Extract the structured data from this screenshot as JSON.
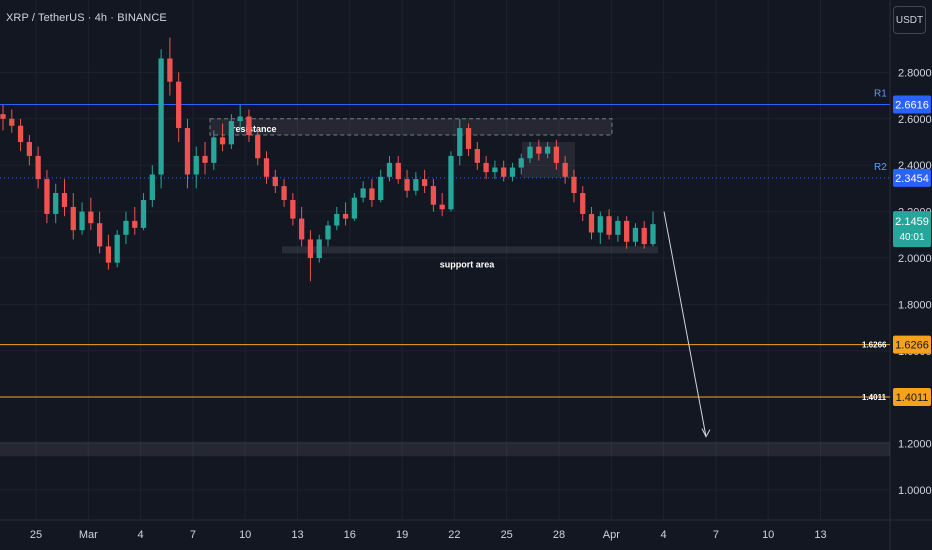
{
  "header": {
    "symbol_line": "XRP / TetherUS · 4h · BINANCE"
  },
  "unit_button": "USDT",
  "colors": {
    "background": "#131722",
    "grid": "#1e222d",
    "up": "#26a69a",
    "down": "#ef5350",
    "resistance_line": "#2962ff",
    "fib_line": "#f7a21b",
    "r2_badge": "#2962ff",
    "last_price_badge": "#26a69a"
  },
  "chart_data": {
    "type": "candlestick",
    "y_ticks": [
      "1.0000",
      "1.2000",
      "1.4000",
      "1.6000",
      "1.8000",
      "2.0000",
      "2.2000",
      "2.4000",
      "2.6000",
      "2.8000"
    ],
    "x_ticks": [
      "25",
      "Mar",
      "4",
      "7",
      "10",
      "13",
      "16",
      "19",
      "22",
      "25",
      "28",
      "Apr",
      "4",
      "7",
      "10",
      "13"
    ],
    "horizontal_lines": [
      {
        "label": "R1",
        "value": 2.6616,
        "badge": "2.6616",
        "style": "solid",
        "color": "#2962ff"
      },
      {
        "label": "R2",
        "value": 2.3454,
        "badge": "2.3454",
        "style": "dotted",
        "color": "#2962ff"
      },
      {
        "label": "1.6266",
        "value": 1.6266,
        "badge": "1.6266",
        "style": "solid",
        "color": "#f7a21b"
      },
      {
        "label": "1.4011",
        "value": 1.4011,
        "badge": "1.4011",
        "style": "solid",
        "color": "#f7a21b"
      }
    ],
    "last_price": {
      "value": "2.1459",
      "countdown": "40:01"
    },
    "zones": [
      {
        "label": "resistance",
        "low": 2.53,
        "high": 2.6
      },
      {
        "label": "support area",
        "low": 2.02,
        "high": 2.05
      },
      {
        "label": "",
        "low": 1.18,
        "high": 1.26
      }
    ],
    "projection_arrow": {
      "from_value": 2.2,
      "to_value": 1.23
    },
    "candles": [
      {
        "o": 2.62,
        "h": 2.66,
        "l": 2.55,
        "c": 2.6
      },
      {
        "o": 2.6,
        "h": 2.64,
        "l": 2.54,
        "c": 2.57
      },
      {
        "o": 2.57,
        "h": 2.6,
        "l": 2.46,
        "c": 2.5
      },
      {
        "o": 2.5,
        "h": 2.53,
        "l": 2.4,
        "c": 2.44
      },
      {
        "o": 2.44,
        "h": 2.48,
        "l": 2.3,
        "c": 2.34
      },
      {
        "o": 2.34,
        "h": 2.38,
        "l": 2.15,
        "c": 2.19
      },
      {
        "o": 2.19,
        "h": 2.32,
        "l": 2.15,
        "c": 2.28
      },
      {
        "o": 2.28,
        "h": 2.34,
        "l": 2.18,
        "c": 2.22
      },
      {
        "o": 2.22,
        "h": 2.28,
        "l": 2.08,
        "c": 2.12
      },
      {
        "o": 2.12,
        "h": 2.24,
        "l": 2.1,
        "c": 2.2
      },
      {
        "o": 2.2,
        "h": 2.26,
        "l": 2.12,
        "c": 2.15
      },
      {
        "o": 2.15,
        "h": 2.2,
        "l": 2.02,
        "c": 2.05
      },
      {
        "o": 2.05,
        "h": 2.1,
        "l": 1.95,
        "c": 1.98
      },
      {
        "o": 1.98,
        "h": 2.12,
        "l": 1.96,
        "c": 2.1
      },
      {
        "o": 2.1,
        "h": 2.2,
        "l": 2.06,
        "c": 2.16
      },
      {
        "o": 2.16,
        "h": 2.22,
        "l": 2.1,
        "c": 2.13
      },
      {
        "o": 2.13,
        "h": 2.28,
        "l": 2.12,
        "c": 2.25
      },
      {
        "o": 2.25,
        "h": 2.4,
        "l": 2.22,
        "c": 2.36
      },
      {
        "o": 2.36,
        "h": 2.9,
        "l": 2.3,
        "c": 2.86
      },
      {
        "o": 2.86,
        "h": 2.95,
        "l": 2.7,
        "c": 2.76
      },
      {
        "o": 2.76,
        "h": 2.8,
        "l": 2.5,
        "c": 2.56
      },
      {
        "o": 2.56,
        "h": 2.6,
        "l": 2.3,
        "c": 2.36
      },
      {
        "o": 2.36,
        "h": 2.48,
        "l": 2.3,
        "c": 2.44
      },
      {
        "o": 2.44,
        "h": 2.5,
        "l": 2.36,
        "c": 2.41
      },
      {
        "o": 2.41,
        "h": 2.55,
        "l": 2.38,
        "c": 2.52
      },
      {
        "o": 2.52,
        "h": 2.58,
        "l": 2.46,
        "c": 2.49
      },
      {
        "o": 2.49,
        "h": 2.62,
        "l": 2.47,
        "c": 2.59
      },
      {
        "o": 2.59,
        "h": 2.66,
        "l": 2.55,
        "c": 2.61
      },
      {
        "o": 2.61,
        "h": 2.64,
        "l": 2.5,
        "c": 2.53
      },
      {
        "o": 2.53,
        "h": 2.56,
        "l": 2.4,
        "c": 2.43
      },
      {
        "o": 2.43,
        "h": 2.46,
        "l": 2.32,
        "c": 2.35
      },
      {
        "o": 2.35,
        "h": 2.38,
        "l": 2.28,
        "c": 2.31
      },
      {
        "o": 2.31,
        "h": 2.34,
        "l": 2.22,
        "c": 2.25
      },
      {
        "o": 2.25,
        "h": 2.28,
        "l": 2.14,
        "c": 2.17
      },
      {
        "o": 2.17,
        "h": 2.22,
        "l": 2.05,
        "c": 2.08
      },
      {
        "o": 2.08,
        "h": 2.12,
        "l": 1.9,
        "c": 2.0
      },
      {
        "o": 2.0,
        "h": 2.1,
        "l": 1.98,
        "c": 2.08
      },
      {
        "o": 2.08,
        "h": 2.16,
        "l": 2.05,
        "c": 2.14
      },
      {
        "o": 2.14,
        "h": 2.22,
        "l": 2.12,
        "c": 2.19
      },
      {
        "o": 2.19,
        "h": 2.24,
        "l": 2.14,
        "c": 2.17
      },
      {
        "o": 2.17,
        "h": 2.28,
        "l": 2.16,
        "c": 2.26
      },
      {
        "o": 2.26,
        "h": 2.33,
        "l": 2.24,
        "c": 2.3
      },
      {
        "o": 2.3,
        "h": 2.34,
        "l": 2.22,
        "c": 2.25
      },
      {
        "o": 2.25,
        "h": 2.38,
        "l": 2.24,
        "c": 2.35
      },
      {
        "o": 2.35,
        "h": 2.44,
        "l": 2.33,
        "c": 2.41
      },
      {
        "o": 2.41,
        "h": 2.44,
        "l": 2.32,
        "c": 2.34
      },
      {
        "o": 2.34,
        "h": 2.38,
        "l": 2.26,
        "c": 2.29
      },
      {
        "o": 2.29,
        "h": 2.37,
        "l": 2.27,
        "c": 2.34
      },
      {
        "o": 2.34,
        "h": 2.38,
        "l": 2.28,
        "c": 2.31
      },
      {
        "o": 2.31,
        "h": 2.34,
        "l": 2.2,
        "c": 2.23
      },
      {
        "o": 2.23,
        "h": 2.28,
        "l": 2.18,
        "c": 2.21
      },
      {
        "o": 2.21,
        "h": 2.46,
        "l": 2.2,
        "c": 2.44
      },
      {
        "o": 2.44,
        "h": 2.6,
        "l": 2.4,
        "c": 2.56
      },
      {
        "o": 2.56,
        "h": 2.58,
        "l": 2.44,
        "c": 2.47
      },
      {
        "o": 2.47,
        "h": 2.5,
        "l": 2.38,
        "c": 2.41
      },
      {
        "o": 2.41,
        "h": 2.44,
        "l": 2.34,
        "c": 2.37
      },
      {
        "o": 2.37,
        "h": 2.42,
        "l": 2.34,
        "c": 2.39
      },
      {
        "o": 2.39,
        "h": 2.42,
        "l": 2.33,
        "c": 2.35
      },
      {
        "o": 2.35,
        "h": 2.41,
        "l": 2.33,
        "c": 2.39
      },
      {
        "o": 2.39,
        "h": 2.45,
        "l": 2.36,
        "c": 2.43
      },
      {
        "o": 2.43,
        "h": 2.5,
        "l": 2.41,
        "c": 2.48
      },
      {
        "o": 2.48,
        "h": 2.51,
        "l": 2.42,
        "c": 2.45
      },
      {
        "o": 2.45,
        "h": 2.5,
        "l": 2.43,
        "c": 2.48
      },
      {
        "o": 2.48,
        "h": 2.51,
        "l": 2.38,
        "c": 2.41
      },
      {
        "o": 2.41,
        "h": 2.44,
        "l": 2.32,
        "c": 2.35
      },
      {
        "o": 2.35,
        "h": 2.38,
        "l": 2.24,
        "c": 2.28
      },
      {
        "o": 2.28,
        "h": 2.31,
        "l": 2.16,
        "c": 2.19
      },
      {
        "o": 2.19,
        "h": 2.22,
        "l": 2.08,
        "c": 2.11
      },
      {
        "o": 2.11,
        "h": 2.2,
        "l": 2.06,
        "c": 2.18
      },
      {
        "o": 2.18,
        "h": 2.21,
        "l": 2.08,
        "c": 2.1
      },
      {
        "o": 2.1,
        "h": 2.18,
        "l": 2.07,
        "c": 2.16
      },
      {
        "o": 2.16,
        "h": 2.18,
        "l": 2.04,
        "c": 2.07
      },
      {
        "o": 2.07,
        "h": 2.15,
        "l": 2.05,
        "c": 2.13
      },
      {
        "o": 2.13,
        "h": 2.16,
        "l": 2.04,
        "c": 2.06
      },
      {
        "o": 2.06,
        "h": 2.2,
        "l": 2.05,
        "c": 2.1459
      }
    ]
  }
}
